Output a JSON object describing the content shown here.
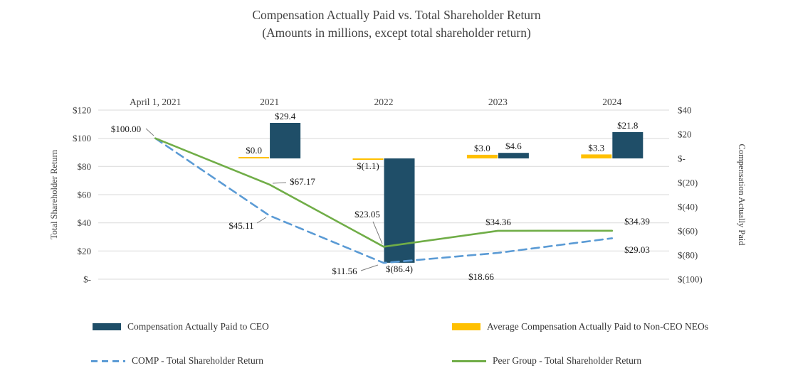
{
  "title": {
    "line1": "Compensation Actually Paid vs. Total Shareholder Return",
    "line2": "(Amounts in millions, except total shareholder return)"
  },
  "chart_data": {
    "type": "combo",
    "categories": [
      "April 1, 2021",
      "2021",
      "2022",
      "2023",
      "2024"
    ],
    "left_axis": {
      "label": "Total Shareholder Return",
      "min": 0,
      "max": 120,
      "step": 20,
      "ticks": [
        "$120",
        "$100",
        "$80",
        "$60",
        "$40",
        "$20",
        "$-"
      ]
    },
    "right_axis": {
      "label": "Compensation Actually Paid",
      "min": -100,
      "max": 40,
      "step": 20,
      "ticks": [
        "$40",
        "$20",
        "$-",
        "$(20)",
        "$(40)",
        "$(60)",
        "$(80)",
        "$(100)"
      ]
    },
    "bar_series": [
      {
        "name": "Compensation Actually Paid to CEO",
        "color": "#1f4e68",
        "axis": "right",
        "values": [
          null,
          29.4,
          -86.4,
          4.6,
          21.8
        ],
        "labels": [
          "",
          "$29.4",
          "$(86.4)",
          "$4.6",
          "$21.8"
        ]
      },
      {
        "name": "Average Compensation Actually Paid to Non-CEO NEOs",
        "color": "#ffc000",
        "axis": "right",
        "values": [
          null,
          0.0,
          -1.1,
          3.0,
          3.3
        ],
        "labels": [
          "",
          "$0.0",
          "$(1.1)",
          "$3.0",
          "$3.3"
        ]
      }
    ],
    "line_series": [
      {
        "name": "COMP - Total Shareholder Return",
        "color": "#5b9bd5",
        "dash": true,
        "axis": "left",
        "values": [
          100.0,
          45.11,
          11.56,
          18.66,
          29.03
        ],
        "labels": [
          "$100.00",
          "$45.11",
          "$11.56",
          "$18.66",
          "$29.03"
        ]
      },
      {
        "name": "Peer Group - Total Shareholder Return",
        "color": "#70ad47",
        "dash": false,
        "axis": "left",
        "values": [
          100.0,
          67.17,
          23.05,
          34.36,
          34.39
        ],
        "labels": [
          "",
          "$67.17",
          "$23.05",
          "$34.36",
          "$34.39"
        ]
      }
    ],
    "gridlines": true
  },
  "legend": {
    "items": [
      {
        "label": "Compensation Actually Paid to CEO",
        "swatch": "bar",
        "color": "#1f4e68"
      },
      {
        "label": "Average Compensation Actually Paid to Non-CEO NEOs",
        "swatch": "bar",
        "color": "#ffc000"
      },
      {
        "label": "COMP - Total Shareholder Return",
        "swatch": "dashed-line",
        "color": "#5b9bd5"
      },
      {
        "label": "Peer Group - Total Shareholder Return",
        "swatch": "solid-line",
        "color": "#70ad47"
      }
    ]
  }
}
